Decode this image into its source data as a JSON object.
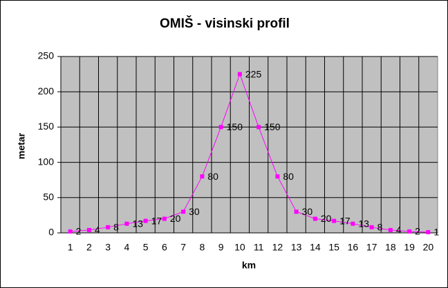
{
  "chart_data": {
    "type": "line",
    "title": "OMIŠ - visinski profil",
    "x_label": "km",
    "y_label": "metar",
    "categories": [
      "1",
      "2",
      "3",
      "4",
      "5",
      "6",
      "7",
      "8",
      "9",
      "10",
      "11",
      "12",
      "13",
      "14",
      "15",
      "16",
      "17",
      "18",
      "19",
      "20"
    ],
    "values": [
      2,
      4,
      8,
      13,
      17,
      20,
      30,
      80,
      150,
      225,
      150,
      80,
      30,
      20,
      17,
      13,
      8,
      4,
      2,
      1
    ],
    "color": "#ff00ff",
    "ylim": [
      0,
      250
    ],
    "yticks": [
      0,
      50,
      100,
      150,
      200,
      250
    ],
    "grid": true,
    "data_labels": true
  }
}
